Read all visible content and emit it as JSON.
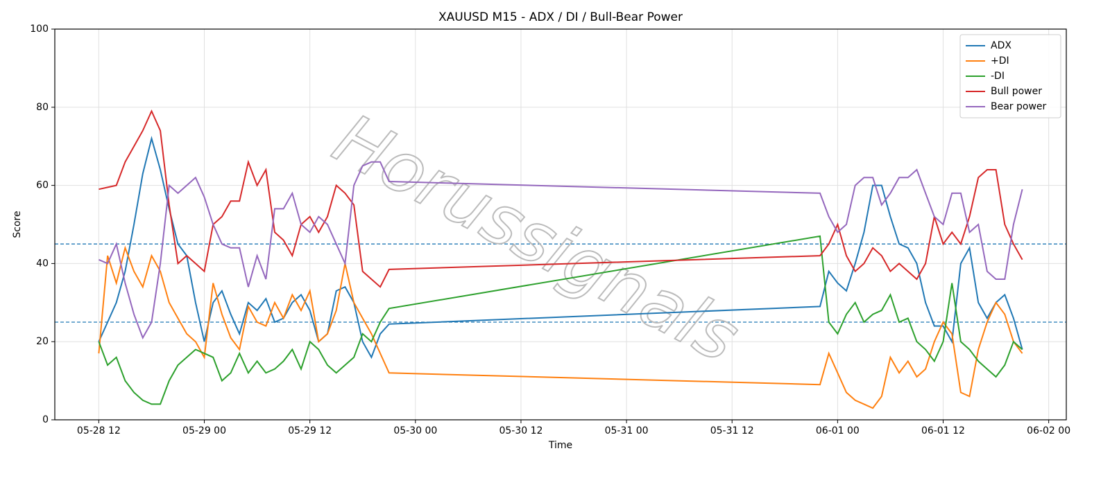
{
  "chart_data": {
    "type": "line",
    "title": "XAUUSD M15 - ADX / DI / Bull-Bear Power",
    "xlabel": "Time",
    "ylabel": "Score",
    "watermark": "Horussignals",
    "x": [
      "05-28 12",
      "05-28 13",
      "05-28 14",
      "05-28 15",
      "05-28 16",
      "05-28 17",
      "05-28 18",
      "05-28 19",
      "05-28 20",
      "05-28 21",
      "05-28 22",
      "05-28 23",
      "05-29 00",
      "05-29 01",
      "05-29 02",
      "05-29 03",
      "05-29 04",
      "05-29 05",
      "05-29 06",
      "05-29 07",
      "05-29 08",
      "05-29 09",
      "05-29 10",
      "05-29 11",
      "05-29 12",
      "05-29 13",
      "05-29 14",
      "05-29 15",
      "05-29 16",
      "05-29 17",
      "05-29 18",
      "05-29 19",
      "05-29 20",
      "05-29 21",
      "05-31 22",
      "05-31 23",
      "06-01 00",
      "06-01 01",
      "06-01 02",
      "06-01 03",
      "06-01 04",
      "06-01 05",
      "06-01 06",
      "06-01 07",
      "06-01 08",
      "06-01 09",
      "06-01 10",
      "06-01 11",
      "06-01 12",
      "06-01 13",
      "06-01 14",
      "06-01 15",
      "06-01 16",
      "06-01 17",
      "06-01 18",
      "06-01 19",
      "06-01 20",
      "06-01 21"
    ],
    "series": [
      {
        "name": "ADX",
        "color": "#1f77b4",
        "values": [
          20,
          25,
          30,
          38,
          50,
          63,
          72,
          64,
          54,
          45,
          42,
          30,
          20,
          30,
          33,
          27,
          22,
          30,
          28,
          31,
          25,
          26,
          30,
          32,
          28,
          20,
          22,
          33,
          34,
          30,
          20,
          16,
          22,
          24.5,
          29,
          38,
          35,
          33,
          40,
          48,
          60,
          60,
          52,
          45,
          44,
          40,
          30,
          24,
          24,
          20,
          40,
          44,
          30,
          26,
          30,
          32,
          26,
          18
        ]
      },
      {
        "name": "+DI",
        "color": "#ff7f0e",
        "values": [
          17,
          42,
          35,
          44,
          38,
          34,
          42,
          38,
          30,
          26,
          22,
          20,
          16,
          35,
          27,
          21,
          18,
          29,
          25,
          24,
          30,
          26,
          32,
          28,
          33,
          20,
          22,
          28,
          40,
          30,
          26,
          22,
          17,
          12,
          9,
          17,
          12,
          7,
          5,
          4,
          3,
          6,
          16,
          12,
          15,
          11,
          13,
          20,
          25,
          22,
          7,
          6,
          18,
          25,
          30,
          27,
          20,
          17
        ]
      },
      {
        "name": "-DI",
        "color": "#2ca02c",
        "values": [
          20,
          14,
          16,
          10,
          7,
          5,
          4,
          4,
          10,
          14,
          16,
          18,
          17,
          16,
          10,
          12,
          17,
          12,
          15,
          12,
          13,
          15,
          18,
          13,
          20,
          18,
          14,
          12,
          14,
          16,
          22,
          20,
          25,
          28.5,
          47,
          25,
          22,
          27,
          30,
          25,
          27,
          28,
          32,
          25,
          26,
          20,
          18,
          15,
          20,
          35,
          20,
          18,
          15,
          13,
          11,
          14,
          20,
          18
        ]
      },
      {
        "name": "Bull power",
        "color": "#d62728",
        "values": [
          59,
          59.5,
          60,
          66,
          70,
          74,
          79,
          74,
          55,
          40,
          42,
          40,
          38,
          50,
          52,
          56,
          56,
          66,
          60,
          64,
          48,
          46,
          42,
          50,
          52,
          48,
          52,
          60,
          58,
          55,
          38,
          36,
          34,
          38.5,
          42,
          45,
          50,
          42,
          38,
          40,
          44,
          42,
          38,
          40,
          38,
          36,
          40,
          52,
          45,
          48,
          45,
          52,
          62,
          64,
          64,
          50,
          45,
          41
        ]
      },
      {
        "name": "Bear power",
        "color": "#9467bd",
        "values": [
          41,
          40,
          45,
          35,
          27,
          21,
          25,
          40,
          60,
          58,
          60,
          62,
          57,
          50,
          45,
          44,
          44,
          34,
          42,
          36,
          54,
          54,
          58,
          50,
          48,
          52,
          50,
          45,
          40,
          60,
          65,
          66,
          66,
          61,
          58,
          52,
          48,
          50,
          60,
          62,
          62,
          55,
          58,
          62,
          62,
          64,
          58,
          52,
          50,
          58,
          58,
          48,
          50,
          38,
          36,
          36,
          50,
          59
        ]
      }
    ],
    "hlines": [
      25,
      45
    ],
    "hline_color": "#1f77b4",
    "xlim": [
      "05-28 07",
      "06-02 02"
    ],
    "xticks": [
      "05-28 12",
      "05-29 00",
      "05-29 12",
      "05-30 00",
      "05-30 12",
      "05-31 00",
      "05-31 12",
      "06-01 00",
      "06-01 12",
      "06-02 00"
    ],
    "ylim": [
      0,
      100
    ],
    "yticks": [
      0,
      20,
      40,
      60,
      80,
      100
    ],
    "grid": true,
    "legend": "upper right"
  }
}
